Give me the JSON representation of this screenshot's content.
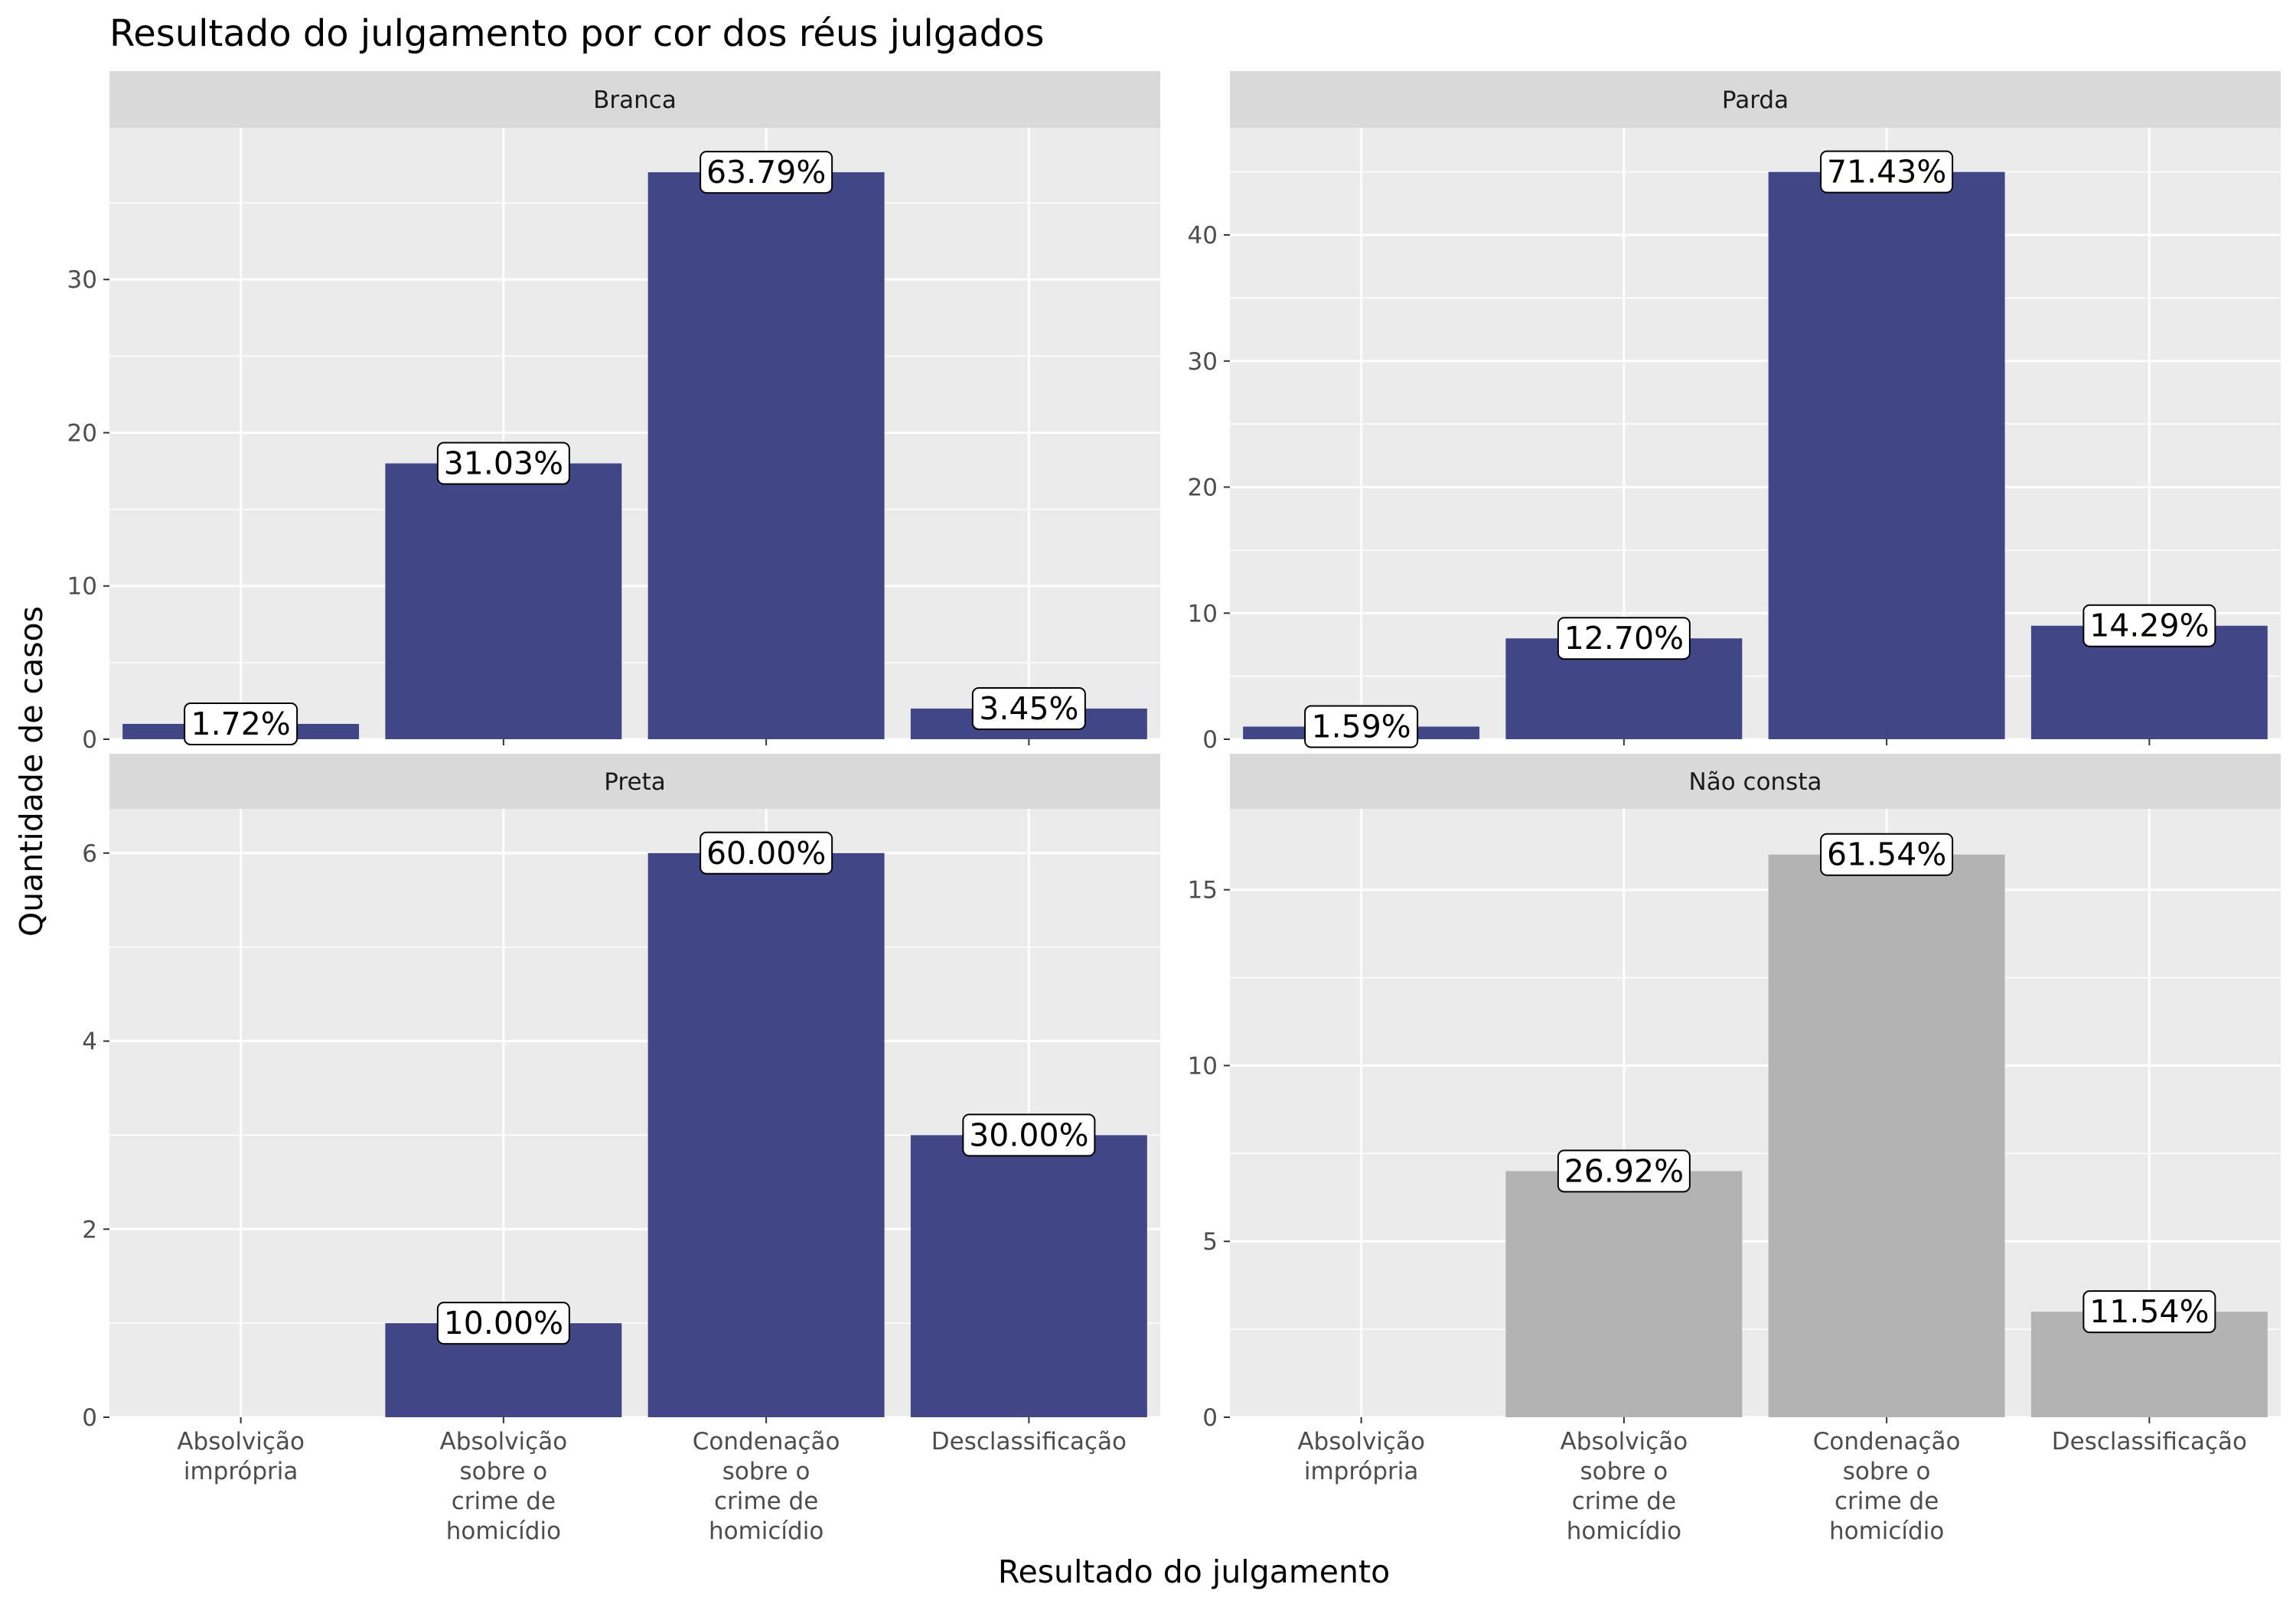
{
  "chart_data": {
    "type": "bar",
    "title": "Resultado do julgamento por cor dos réus julgados",
    "xlabel": "Resultado do julgamento",
    "ylabel": "Quantidade de casos",
    "categories": [
      [
        "Absolvição",
        "imprópria"
      ],
      [
        "Absolvição",
        "sobre o",
        "crime de",
        "homicídio"
      ],
      [
        "Condenação",
        "sobre o",
        "crime de",
        "homicídio"
      ],
      [
        "Desclassificação"
      ]
    ],
    "grid": true,
    "legend": "none",
    "colors": {
      "highlight": "#404686",
      "muted": "#b3b3b3",
      "panel_bg": "#ebebeb",
      "strip_bg": "#d9d9d9"
    },
    "panels": [
      {
        "name": "Branca",
        "color": "#404686",
        "ylim": [
          0,
          39.9
        ],
        "yticks": [
          0,
          10,
          20,
          30
        ],
        "values": [
          1,
          18,
          37,
          2
        ],
        "labels": [
          "1.72%",
          "31.03%",
          "63.79%",
          "3.45%"
        ]
      },
      {
        "name": "Parda",
        "color": "#404686",
        "ylim": [
          0,
          48.5
        ],
        "yticks": [
          0,
          10,
          20,
          30,
          40
        ],
        "values": [
          1,
          8,
          45,
          9
        ],
        "labels": [
          "1.59%",
          "12.70%",
          "71.43%",
          "14.29%"
        ]
      },
      {
        "name": "Preta",
        "color": "#404686",
        "ylim": [
          0,
          6.47
        ],
        "yticks": [
          0,
          2,
          4,
          6
        ],
        "values": [
          0,
          1,
          6,
          3
        ],
        "labels": [
          null,
          "10.00%",
          "60.00%",
          "30.00%"
        ]
      },
      {
        "name": "Não consta",
        "color": "#b3b3b3",
        "ylim": [
          0,
          17.3
        ],
        "yticks": [
          0,
          5,
          10,
          15
        ],
        "values": [
          0,
          7,
          16,
          3
        ],
        "labels": [
          null,
          "26.92%",
          "61.54%",
          "11.54%"
        ]
      }
    ]
  }
}
